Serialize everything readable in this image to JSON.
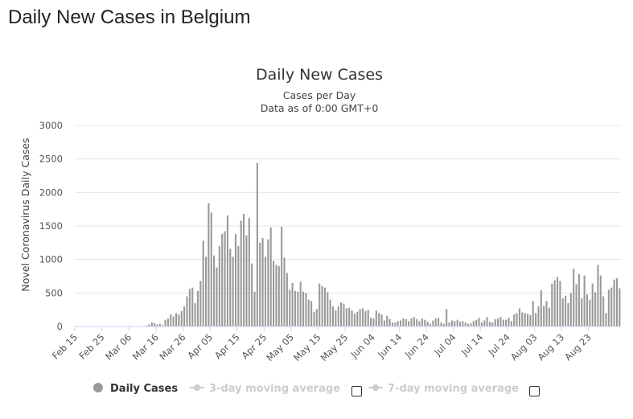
{
  "page": {
    "title": "Daily New Cases in Belgium"
  },
  "chart_data": {
    "type": "bar",
    "title": "Daily New Cases",
    "subtitle_line1": "Cases per Day",
    "subtitle_line2": "Data as of 0:00 GMT+0",
    "ylabel": "Novel Coronavirus Daily Cases",
    "xlabel": "",
    "ylim": [
      0,
      3000
    ],
    "y_ticks": [
      "0",
      "500",
      "1000",
      "1500",
      "2000",
      "2500",
      "3000"
    ],
    "x_ticks": [
      "Feb 15",
      "Feb 25",
      "Mar 06",
      "Mar 16",
      "Mar 26",
      "Apr 05",
      "Apr 15",
      "Apr 25",
      "May 05",
      "May 15",
      "May 25",
      "Jun 04",
      "Jun 14",
      "Jun 24",
      "Jul 04",
      "Jul 14",
      "Jul 24",
      "Aug 03",
      "Aug 13",
      "Aug 23"
    ],
    "start_label": "Feb 15",
    "grid": true,
    "bar_color": "#999999",
    "series": [
      {
        "name": "Daily Cases",
        "values": [
          0,
          0,
          0,
          0,
          0,
          0,
          0,
          0,
          0,
          0,
          0,
          0,
          0,
          0,
          0,
          0,
          0,
          0,
          1,
          0,
          8,
          0,
          0,
          0,
          0,
          3,
          15,
          30,
          60,
          50,
          30,
          40,
          20,
          100,
          120,
          180,
          150,
          200,
          180,
          230,
          300,
          450,
          560,
          580,
          350,
          530,
          680,
          1280,
          1040,
          1840,
          1700,
          1060,
          880,
          1200,
          1380,
          1420,
          1660,
          1160,
          1040,
          1380,
          1200,
          1580,
          1680,
          1360,
          1620,
          940,
          520,
          2440,
          1250,
          1320,
          1040,
          1300,
          1480,
          980,
          920,
          900,
          1490,
          1030,
          800,
          550,
          650,
          530,
          520,
          670,
          520,
          500,
          400,
          380,
          220,
          260,
          640,
          600,
          580,
          510,
          400,
          300,
          240,
          300,
          360,
          340,
          270,
          280,
          240,
          190,
          220,
          260,
          270,
          230,
          250,
          130,
          120,
          240,
          200,
          180,
          90,
          160,
          110,
          60,
          60,
          80,
          90,
          120,
          110,
          80,
          120,
          140,
          110,
          80,
          120,
          100,
          70,
          40,
          90,
          120,
          130,
          60,
          40,
          260,
          60,
          90,
          80,
          100,
          70,
          80,
          60,
          40,
          50,
          80,
          100,
          130,
          60,
          90,
          140,
          70,
          60,
          110,
          120,
          140,
          100,
          100,
          130,
          80,
          180,
          200,
          270,
          210,
          200,
          190,
          170,
          380,
          200,
          300,
          540,
          310,
          380,
          280,
          640,
          690,
          740,
          680,
          420,
          460,
          350,
          500,
          860,
          630,
          780,
          420,
          760,
          480,
          400,
          640,
          510,
          920,
          760,
          450,
          200,
          550,
          580,
          700,
          720,
          570
        ]
      },
      {
        "name": "3-day moving average"
      },
      {
        "name": "7-day moving average"
      }
    ],
    "legend_position": "bottom"
  }
}
